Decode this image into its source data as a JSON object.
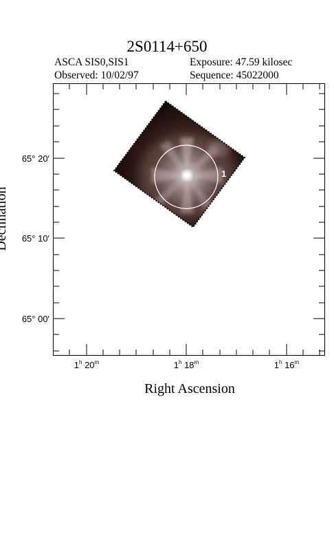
{
  "header": {
    "title": "2S0114+650",
    "instrument": "ASCA SIS0,SIS1",
    "observed": "Observed: 10/02/97",
    "exposure": "Exposure: 47.59 kilosec",
    "sequence": "Sequence: 45022000"
  },
  "axes": {
    "xlabel": "Right Ascension",
    "ylabel": "Declination",
    "x_ticks": [
      {
        "h": "1",
        "m": "20"
      },
      {
        "h": "1",
        "m": "18"
      },
      {
        "h": "1",
        "m": "16"
      }
    ],
    "y_ticks": [
      "65° 20′",
      "65° 10′",
      "65° 00′"
    ]
  },
  "image": {
    "source_label": "1",
    "colors": {
      "background": "#ffffff",
      "field_dark": "#140a08",
      "field_mid": "#4a2a24",
      "core": "#ffffff",
      "circle": "#ffffff",
      "frame": "#000000"
    }
  }
}
